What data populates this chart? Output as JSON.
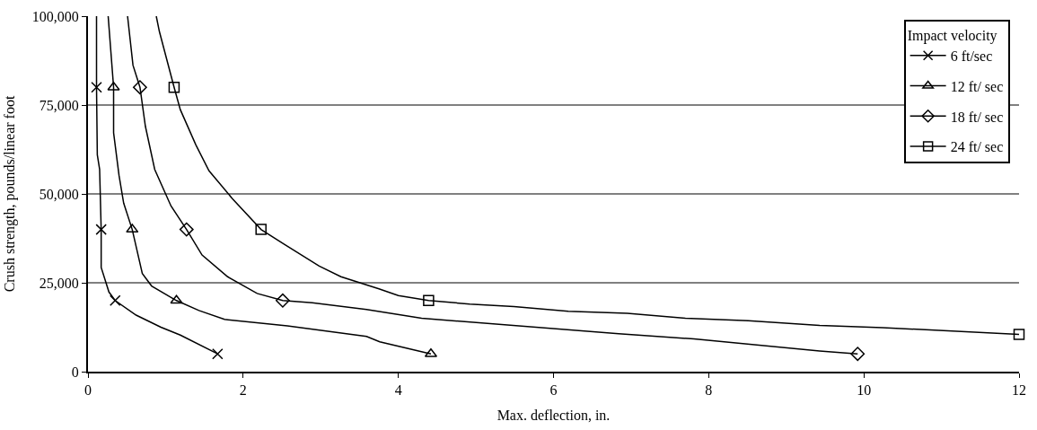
{
  "chart_data": {
    "type": "line",
    "xlabel": "Max. deflection, in.",
    "ylabel": "Crush strength, pounds/linear foot",
    "legend_title": "Impact velocity",
    "xlim": [
      0,
      12
    ],
    "xticks": [
      0,
      2,
      4,
      6,
      8,
      10,
      12
    ],
    "ylim": [
      0,
      100000
    ],
    "yticks": [
      {
        "value": 0,
        "label": "0"
      },
      {
        "value": 25000,
        "label": "25,000"
      },
      {
        "value": 50000,
        "label": "50,000"
      },
      {
        "value": 75000,
        "label": "75,000"
      },
      {
        "value": 100000,
        "label": "100,000"
      }
    ],
    "grid": "y",
    "legend": "top right",
    "line_style": "solid",
    "series": [
      {
        "name": "6 ft/sec",
        "color": "#000000",
        "x": [
          0.11,
          0.11,
          0.12,
          0.15,
          0.17,
          0.17,
          0.27,
          0.35,
          0.62,
          0.94,
          1.19,
          1.67
        ],
        "values": [
          100000,
          80000,
          61000,
          56900,
          40000,
          29300,
          22400,
          20000,
          15900,
          12500,
          10300,
          5000
        ]
      },
      {
        "name": "12 ft/ sec",
        "color": "#000000",
        "x": [
          0.26,
          0.33,
          0.33,
          0.4,
          0.46,
          0.57,
          0.7,
          0.82,
          1.14,
          1.43,
          1.76,
          2.57,
          3.59,
          3.76,
          4.42
        ],
        "values": [
          100000,
          80000,
          67200,
          55200,
          47400,
          40000,
          27600,
          24100,
          20000,
          17200,
          14700,
          12900,
          9900,
          8400,
          5000
        ]
      },
      {
        "name": "18 ft/ sec",
        "color": "#000000",
        "x": [
          0.51,
          0.58,
          0.67,
          0.74,
          0.86,
          1.07,
          1.27,
          1.47,
          1.8,
          2.18,
          2.51,
          2.89,
          3.59,
          4.3,
          6.84,
          7.81,
          9.43,
          9.92
        ],
        "values": [
          100000,
          86200,
          80000,
          69000,
          56900,
          46600,
          40000,
          32800,
          26700,
          22000,
          20000,
          19400,
          17500,
          15000,
          10700,
          9200,
          5800,
          5000
        ]
      },
      {
        "name": "24 ft/ sec",
        "color": "#000000",
        "x": [
          0.88,
          0.92,
          1.11,
          1.19,
          1.39,
          1.56,
          1.86,
          2.23,
          2.53,
          2.98,
          3.26,
          3.75,
          4.0,
          4.39,
          4.92,
          5.49,
          6.19,
          6.95,
          7.7,
          8.51,
          9.43,
          10.24,
          12.0
        ],
        "values": [
          100000,
          95700,
          80000,
          73700,
          63800,
          56500,
          48700,
          40000,
          35800,
          29700,
          26700,
          23300,
          21400,
          20000,
          19000,
          18300,
          17000,
          16400,
          15000,
          14300,
          13000,
          12400,
          10500
        ]
      },
      {
        "type": "scatter",
        "marker": "cross",
        "color": "#000000",
        "x": [
          0.11,
          0.17,
          0.35,
          1.67
        ],
        "values": [
          80000,
          40000,
          20000,
          5000
        ]
      },
      {
        "type": "scatter",
        "marker": "triangle",
        "color": "#000000",
        "x": [
          0.33,
          0.57,
          1.14,
          4.42
        ],
        "values": [
          80000,
          40000,
          20000,
          5000
        ]
      },
      {
        "type": "scatter",
        "marker": "diamond",
        "color": "#000000",
        "x": [
          0.67,
          1.27,
          2.51,
          9.92
        ],
        "values": [
          80000,
          40000,
          20000,
          5000
        ]
      },
      {
        "type": "scatter",
        "marker": "square",
        "color": "#000000",
        "x": [
          1.11,
          2.23,
          4.39,
          12.0
        ],
        "values": [
          80000,
          40000,
          20000,
          10500
        ]
      }
    ]
  }
}
